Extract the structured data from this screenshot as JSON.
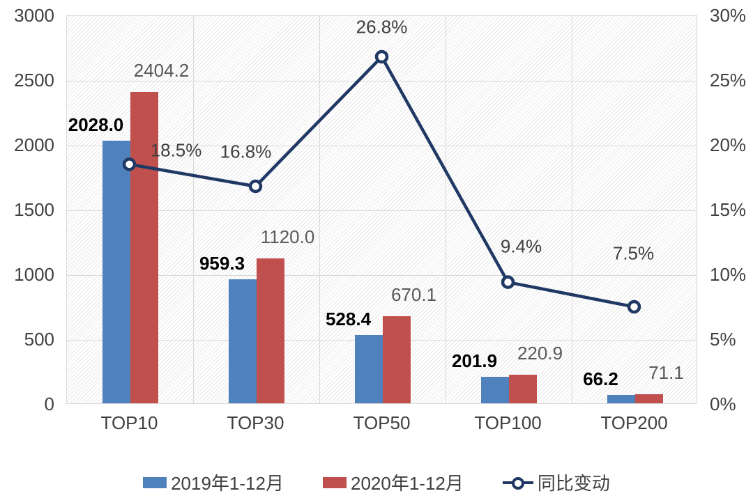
{
  "chart_data": {
    "type": "combo",
    "title": "",
    "categories": [
      "TOP10",
      "TOP30",
      "TOP50",
      "TOP100",
      "TOP200"
    ],
    "series": [
      {
        "name": "2019年1-12月",
        "type": "bar",
        "color": "#4f81bd",
        "values": [
          2028.0,
          959.3,
          528.4,
          201.9,
          66.2
        ],
        "data_labels": [
          "2028.0",
          "959.3",
          "528.4",
          "201.9",
          "66.2"
        ]
      },
      {
        "name": "2020年1-12月",
        "type": "bar",
        "color": "#c0504d",
        "values": [
          2404.2,
          1120.0,
          670.1,
          220.9,
          71.1
        ],
        "data_labels": [
          "2404.2",
          "1120.0",
          "670.1",
          "220.9",
          "71.1"
        ]
      },
      {
        "name": "同比变动",
        "type": "line",
        "axis": "right",
        "color": "#1f3864",
        "marker_fill": "#ffffff",
        "values": [
          18.5,
          16.8,
          26.8,
          9.4,
          7.5
        ],
        "data_labels": [
          "18.5%",
          "16.8%",
          "26.8%",
          "9.4%",
          "7.5%"
        ]
      }
    ],
    "left_axis": {
      "min": 0,
      "max": 3000,
      "ticks": [
        "0",
        "500",
        "1000",
        "1500",
        "2000",
        "2500",
        "3000"
      ]
    },
    "right_axis": {
      "min": 0,
      "max": 30,
      "ticks": [
        "0%",
        "5%",
        "10%",
        "15%",
        "20%",
        "25%",
        "30%"
      ]
    },
    "grid": true,
    "legend_position": "bottom",
    "background_pattern": "diagonal-hatch",
    "gridline_color": "#d9d9d9",
    "label_colors": {
      "series_2019": "#000000",
      "series_2020": "#595959",
      "line_labels": "#404040",
      "axis": "#404040"
    }
  }
}
